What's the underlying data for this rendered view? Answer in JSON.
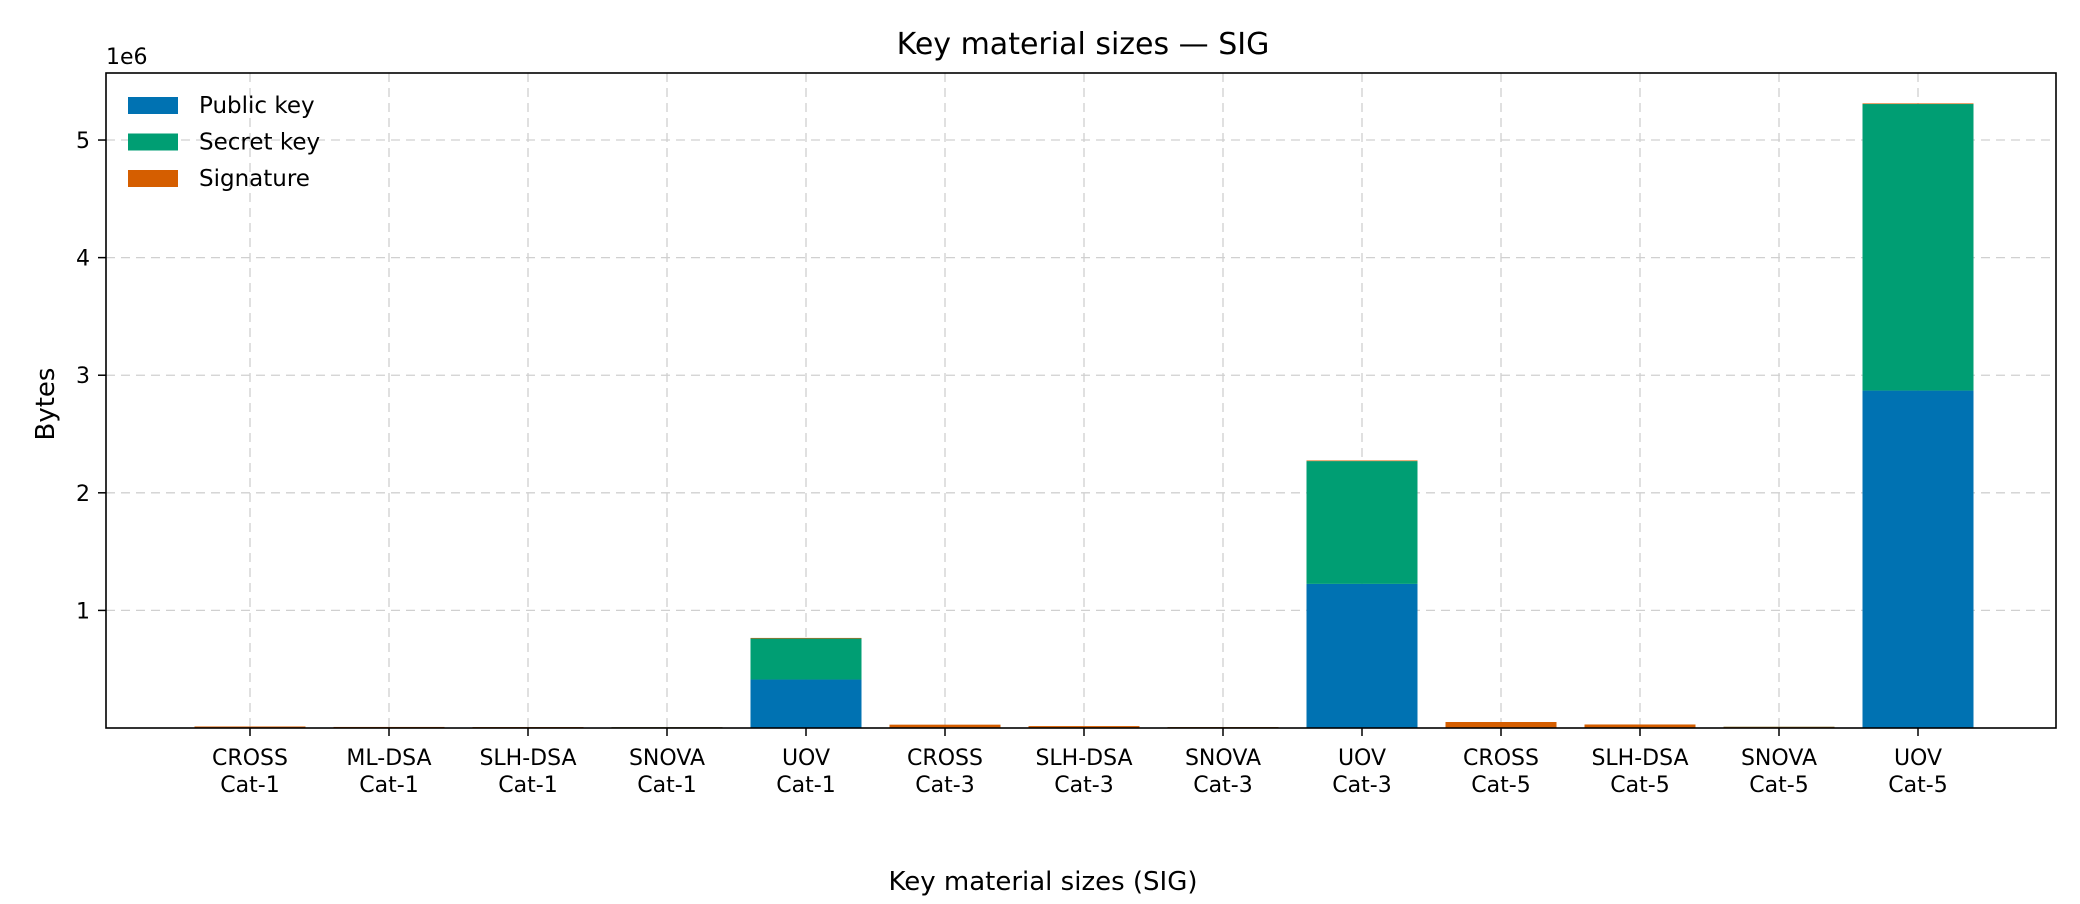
{
  "chart_data": {
    "type": "bar",
    "stacked": true,
    "title": "Key material sizes — SIG",
    "xlabel": "Key material sizes (SIG)",
    "ylabel": "Bytes",
    "y_offset_label": "1e6",
    "y_scale_factor": 1000000,
    "ylim": [
      0,
      5570000
    ],
    "yticks": [
      1,
      2,
      3,
      4,
      5
    ],
    "grid": true,
    "legend_position": "top-left",
    "categories": [
      [
        "CROSS",
        "Cat-1"
      ],
      [
        "ML-DSA",
        "Cat-1"
      ],
      [
        "SLH-DSA",
        "Cat-1"
      ],
      [
        "SNOVA",
        "Cat-1"
      ],
      [
        "UOV",
        "Cat-1"
      ],
      [
        "CROSS",
        "Cat-3"
      ],
      [
        "SLH-DSA",
        "Cat-3"
      ],
      [
        "SNOVA",
        "Cat-3"
      ],
      [
        "UOV",
        "Cat-3"
      ],
      [
        "CROSS",
        "Cat-5"
      ],
      [
        "SLH-DSA",
        "Cat-5"
      ],
      [
        "SNOVA",
        "Cat-5"
      ],
      [
        "UOV",
        "Cat-5"
      ]
    ],
    "series": [
      {
        "name": "Public key",
        "color": "#0072B2",
        "values": [
          77,
          1312,
          32,
          1016,
          412160,
          115,
          48,
          2320,
          1225440,
          153,
          64,
          5000,
          2869440
        ]
      },
      {
        "name": "Secret key",
        "color": "#009E73",
        "values": [
          32,
          2560,
          64,
          48,
          348704,
          48,
          96,
          48,
          1044320,
          64,
          128,
          64,
          2436704
        ]
      },
      {
        "name": "Signature",
        "color": "#D55E00",
        "values": [
          12912,
          2420,
          7856,
          248,
          96,
          28222,
          16224,
          376,
          200,
          50862,
          29792,
          964,
          260
        ]
      }
    ]
  }
}
